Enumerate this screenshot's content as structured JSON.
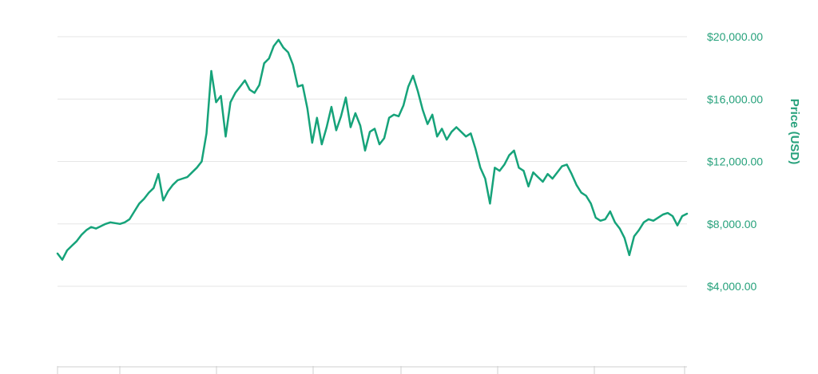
{
  "chart_data": {
    "type": "line",
    "title": "",
    "xlabel": "",
    "ylabel": "Price (USD)",
    "ylim": [
      0,
      21000
    ],
    "y_ticks": [
      {
        "value": 4000,
        "label": "$4,000.00"
      },
      {
        "value": 8000,
        "label": "$8,000.00"
      },
      {
        "value": 12000,
        "label": "$12,000.00"
      },
      {
        "value": 16000,
        "label": "$16,000.00"
      },
      {
        "value": 20000,
        "label": "$20,000.00"
      }
    ],
    "x_ticks_visible": 7,
    "grid": true,
    "legend": "none",
    "colors": {
      "line": "#16a37a",
      "axis_text": "#26a17b",
      "grid": "#e6e6e6",
      "axis": "#cfcfcf"
    },
    "series": [
      {
        "values": [
          6100,
          5700,
          6300,
          6600,
          6900,
          7300,
          7600,
          7800,
          7700,
          7850,
          8000,
          8100,
          8050,
          8000,
          8100,
          8300,
          8800,
          9300,
          9600,
          10000,
          10300,
          11200,
          9500,
          10100,
          10500,
          10800,
          10900,
          11000,
          11300,
          11600,
          12000,
          13800,
          17800,
          15800,
          16200,
          13600,
          15800,
          16400,
          16800,
          17200,
          16600,
          16400,
          16900,
          18300,
          18600,
          19400,
          19800,
          19300,
          19000,
          18200,
          16800,
          16900,
          15400,
          13200,
          14800,
          13100,
          14200,
          15500,
          14000,
          14900,
          16100,
          14200,
          15100,
          14300,
          12700,
          13900,
          14100,
          13100,
          13500,
          14800,
          15000,
          14900,
          15600,
          16800,
          17500,
          16500,
          15300,
          14400,
          15000,
          13600,
          14100,
          13400,
          13900,
          14200,
          13900,
          13600,
          13800,
          12800,
          11600,
          10900,
          9300,
          11600,
          11400,
          11800,
          12400,
          12700,
          11600,
          11400,
          10400,
          11300,
          11000,
          10700,
          11200,
          10900,
          11300,
          11700,
          11800,
          11200,
          10500,
          10000,
          9800,
          9300,
          8400,
          8200,
          8300,
          8800,
          8100,
          7700,
          7100,
          6000,
          7200,
          7600,
          8100,
          8300,
          8200,
          8400,
          8600,
          8700,
          8500,
          7900,
          8500,
          8650
        ]
      }
    ]
  }
}
